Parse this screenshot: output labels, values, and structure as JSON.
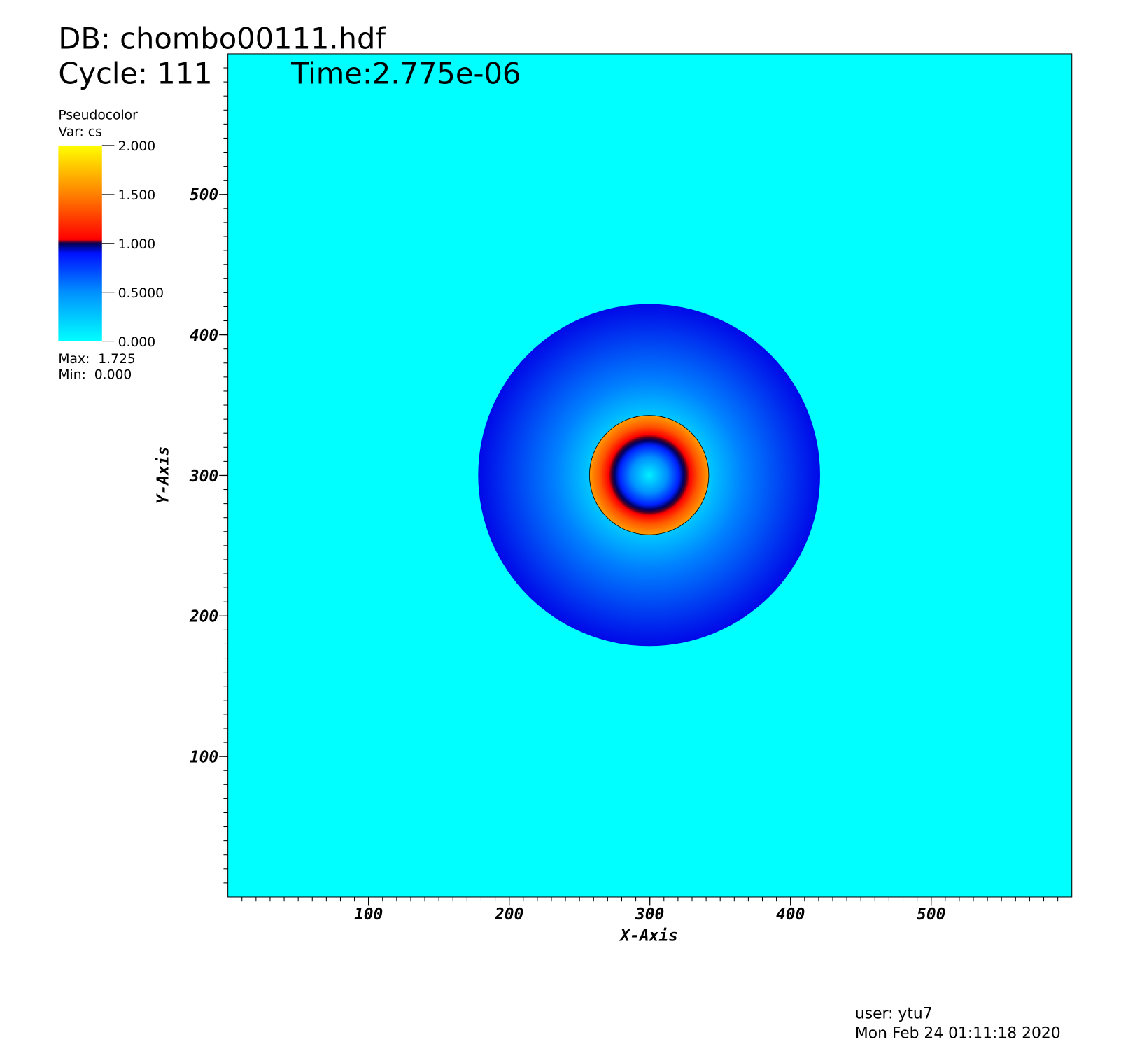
{
  "chart_data": {
    "type": "pseudocolor",
    "title": "DB: chombo00111.hdf",
    "cycle": "Cycle: 111",
    "time": "Time:2.775e-06",
    "legend": {
      "plot": "Pseudocolor",
      "variable": "Var: cs",
      "clim": [
        0,
        2
      ],
      "cticks": [
        {
          "value": 2,
          "label": "2.000"
        },
        {
          "value": 1.5,
          "label": "1.500"
        },
        {
          "value": 1,
          "label": "1.000"
        },
        {
          "value": 0.5,
          "label": "0.5000"
        },
        {
          "value": 0,
          "label": "0.000"
        }
      ],
      "max": "Max:  1.725",
      "min": "Min:  0.000"
    },
    "x_label": "X-Axis",
    "y_label": "Y-Axis",
    "xlim": [
      0,
      600
    ],
    "ylim": [
      0,
      600
    ],
    "xticks": [
      100,
      200,
      300,
      400,
      500
    ],
    "yticks": [
      100,
      200,
      300,
      400,
      500
    ],
    "footer": [
      "user: ytu7",
      "Mon Feb 24 01:11:18 2020"
    ]
  }
}
